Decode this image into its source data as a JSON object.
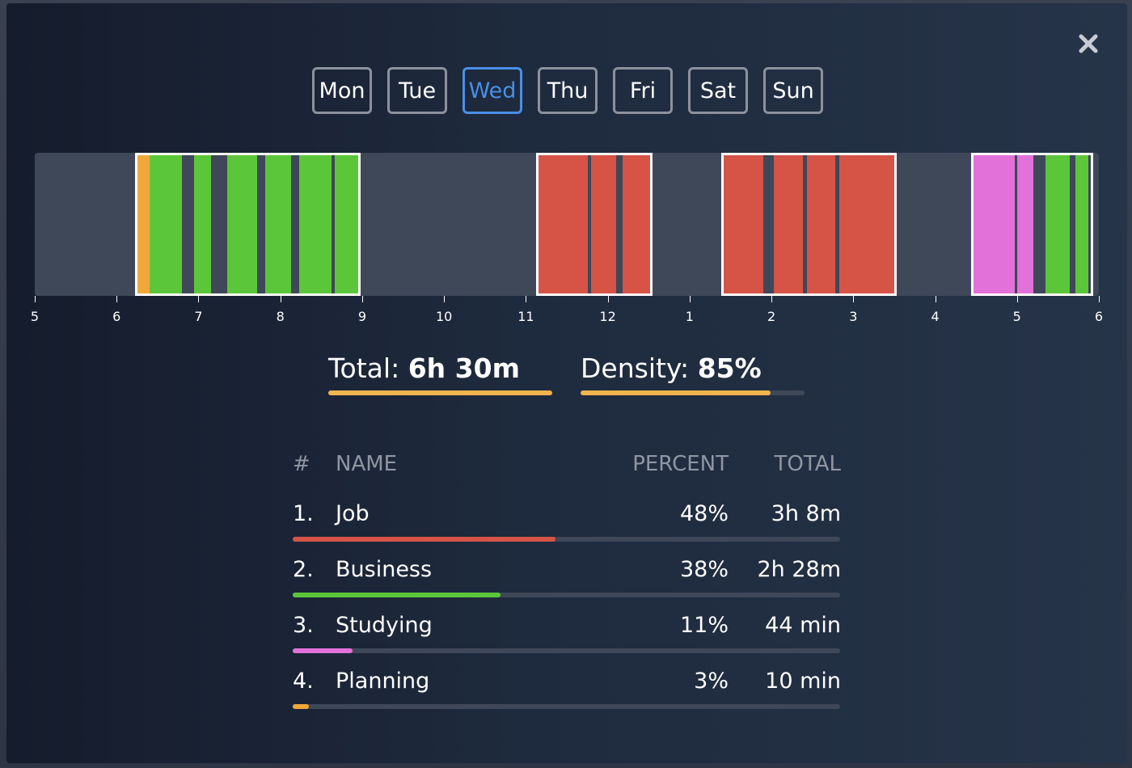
{
  "close": {
    "icon": "close-icon"
  },
  "days": [
    {
      "label": "Mon",
      "active": false
    },
    {
      "label": "Tue",
      "active": false
    },
    {
      "label": "Wed",
      "active": true
    },
    {
      "label": "Thu",
      "active": false
    },
    {
      "label": "Fri",
      "active": false
    },
    {
      "label": "Sat",
      "active": false
    },
    {
      "label": "Sun",
      "active": false
    }
  ],
  "colors": {
    "job": "#d55446",
    "business": "#5cc63a",
    "studying": "#e271d9",
    "planning": "#f0a73a",
    "accent": "#4a8fe7",
    "stat_bar": "#f0b54e"
  },
  "timeline": {
    "start_hour": 5,
    "end_hour": 18,
    "tick_labels": [
      "5",
      "6",
      "7",
      "8",
      "9",
      "10",
      "11",
      "12",
      "1",
      "2",
      "3",
      "4",
      "5",
      "6"
    ],
    "sessions": [
      {
        "start": 6.25,
        "end": 8.95,
        "segments": [
          {
            "start": 6.25,
            "end": 6.4,
            "cat": "planning"
          },
          {
            "start": 6.4,
            "end": 6.8,
            "cat": "business"
          },
          {
            "start": 6.95,
            "end": 7.15,
            "cat": "business"
          },
          {
            "start": 7.35,
            "end": 7.72,
            "cat": "business"
          },
          {
            "start": 7.82,
            "end": 8.13,
            "cat": "business"
          },
          {
            "start": 8.23,
            "end": 8.63,
            "cat": "business"
          },
          {
            "start": 8.66,
            "end": 8.95,
            "cat": "business"
          }
        ]
      },
      {
        "start": 11.15,
        "end": 12.52,
        "segments": [
          {
            "start": 11.15,
            "end": 11.76,
            "cat": "job"
          },
          {
            "start": 11.8,
            "end": 12.1,
            "cat": "job"
          },
          {
            "start": 12.18,
            "end": 12.52,
            "cat": "job"
          }
        ]
      },
      {
        "start": 13.42,
        "end": 15.5,
        "segments": [
          {
            "start": 13.42,
            "end": 13.9,
            "cat": "job"
          },
          {
            "start": 14.03,
            "end": 14.38,
            "cat": "job"
          },
          {
            "start": 14.43,
            "end": 14.78,
            "cat": "job"
          },
          {
            "start": 14.83,
            "end": 15.5,
            "cat": "job"
          }
        ]
      },
      {
        "start": 16.47,
        "end": 17.9,
        "segments": [
          {
            "start": 16.47,
            "end": 16.97,
            "cat": "studying"
          },
          {
            "start": 17.0,
            "end": 17.2,
            "cat": "studying"
          },
          {
            "start": 17.35,
            "end": 17.64,
            "cat": "business"
          },
          {
            "start": 17.71,
            "end": 17.87,
            "cat": "business"
          }
        ]
      }
    ]
  },
  "stats": {
    "total_label": "Total:",
    "total_value": "6h 30m",
    "total_fraction": 1.0,
    "density_label": "Density:",
    "density_value": "85%",
    "density_fraction": 0.85
  },
  "table": {
    "headers": {
      "num": "#",
      "name": "NAME",
      "percent": "PERCENT",
      "total": "TOTAL"
    },
    "rows": [
      {
        "num": "1.",
        "name": "Job",
        "percent": "48%",
        "total": "3h 8m",
        "fraction": 0.48,
        "cat": "job"
      },
      {
        "num": "2.",
        "name": "Business",
        "percent": "38%",
        "total": "2h 28m",
        "fraction": 0.38,
        "cat": "business"
      },
      {
        "num": "3.",
        "name": "Studying",
        "percent": "11%",
        "total": "44 min",
        "fraction": 0.11,
        "cat": "studying"
      },
      {
        "num": "4.",
        "name": "Planning",
        "percent": "3%",
        "total": "10 min",
        "fraction": 0.03,
        "cat": "planning"
      }
    ]
  }
}
